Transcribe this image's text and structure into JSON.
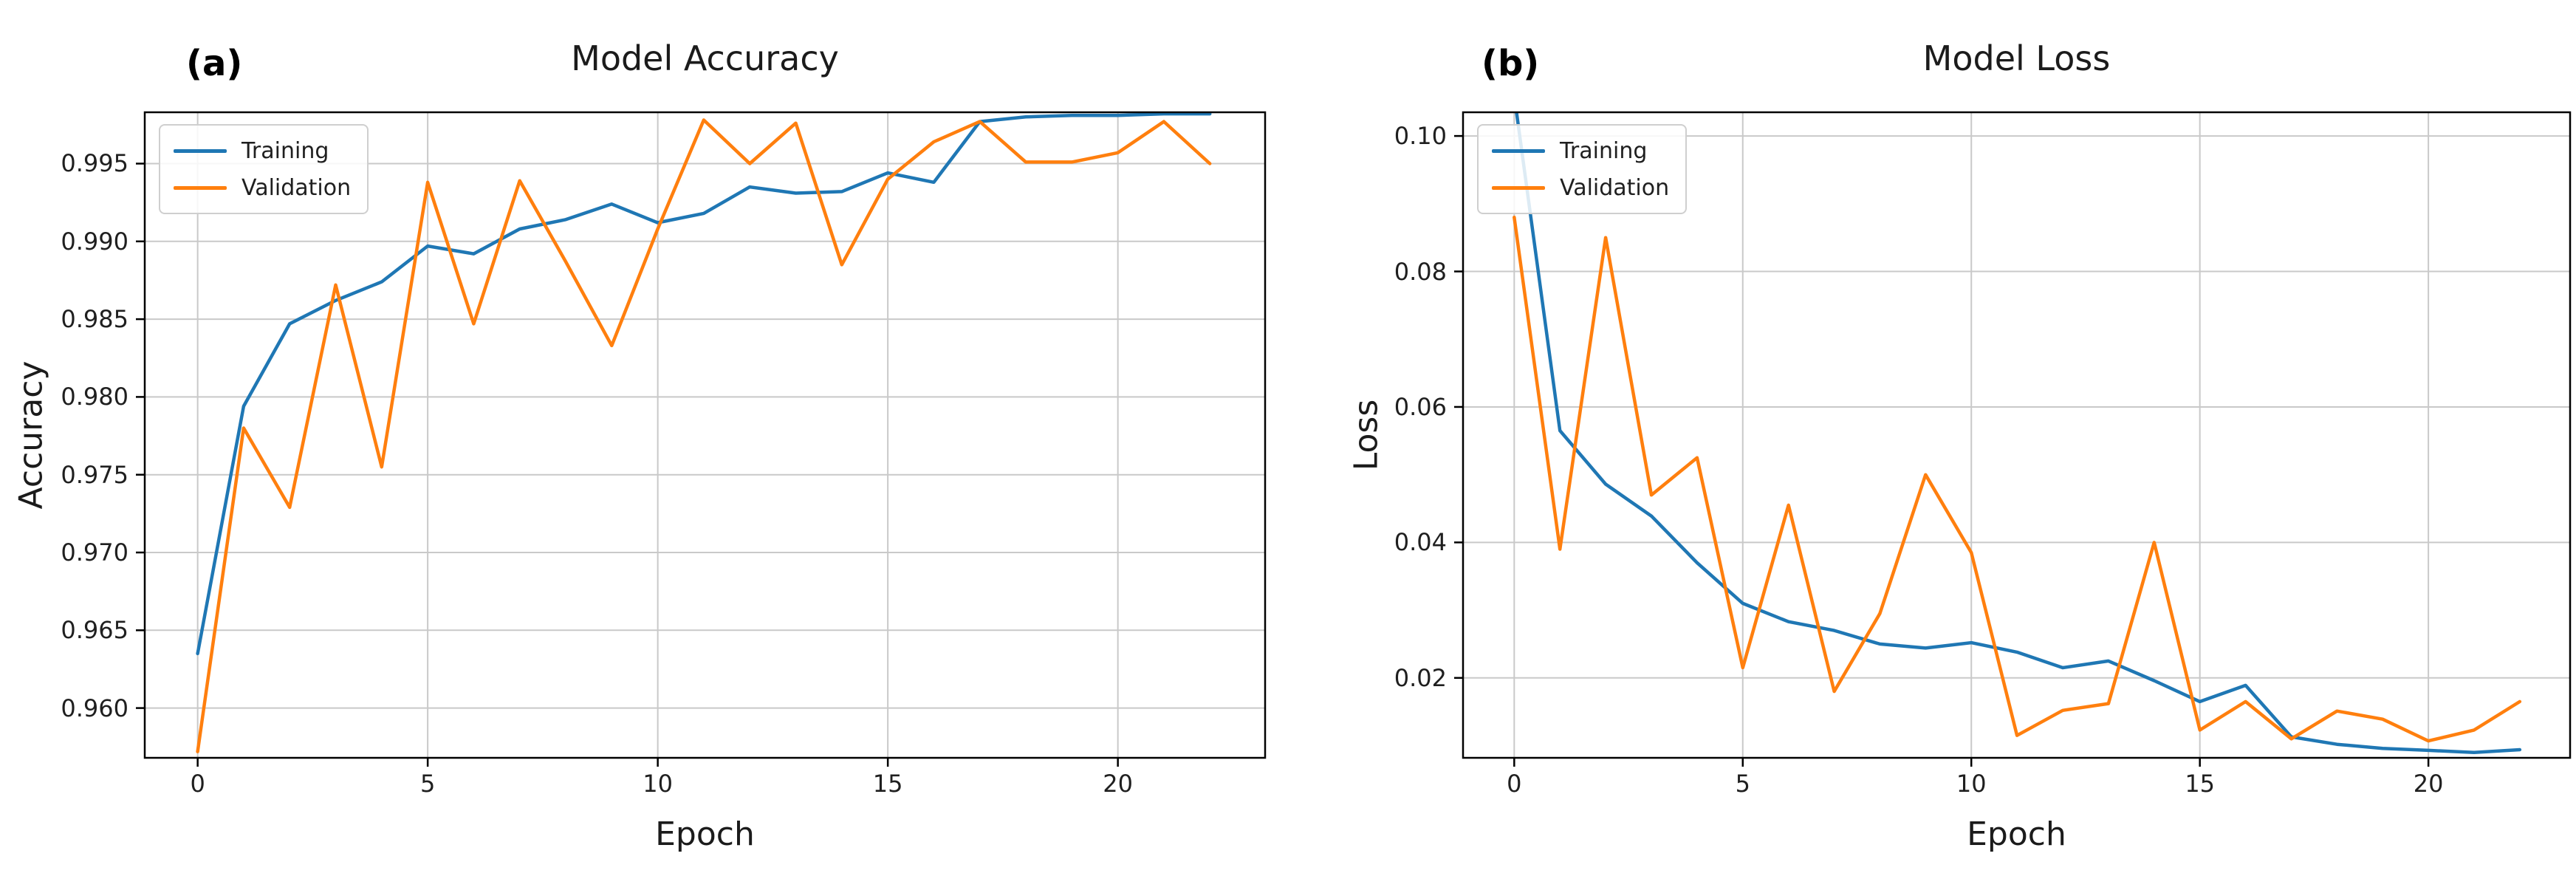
{
  "figure": {
    "background": "#ffffff",
    "text_color": "#1b1b1b",
    "grid_color": "#c9c9c9",
    "frame_color": "#000000",
    "training_color": "#1f77b4",
    "validation_color": "#ff7f0e"
  },
  "panels": [
    {
      "label": "(a)",
      "title": "Model Accuracy",
      "xlabel": "Epoch",
      "ylabel": "Accuracy"
    },
    {
      "label": "(b)",
      "title": "Model Loss",
      "xlabel": "Epoch",
      "ylabel": "Loss"
    }
  ],
  "chart_data": [
    {
      "type": "line",
      "title": "Model Accuracy",
      "xlabel": "Epoch",
      "ylabel": "Accuracy",
      "x": [
        0,
        1,
        2,
        3,
        4,
        5,
        6,
        7,
        8,
        9,
        10,
        11,
        12,
        13,
        14,
        15,
        16,
        17,
        18,
        19,
        20,
        21,
        22
      ],
      "series": [
        {
          "name": "Training",
          "color": "#1f77b4",
          "values": [
            0.9635,
            0.9794,
            0.9847,
            0.9862,
            0.9874,
            0.9897,
            0.9892,
            0.9908,
            0.9914,
            0.9924,
            0.9912,
            0.9918,
            0.9935,
            0.9931,
            0.9932,
            0.9944,
            0.9938,
            0.9977,
            0.998,
            0.9981,
            0.9981,
            0.9982,
            0.9982
          ]
        },
        {
          "name": "Validation",
          "color": "#ff7f0e",
          "values": [
            0.9572,
            0.978,
            0.9729,
            0.9872,
            0.9755,
            0.9938,
            0.9847,
            0.9939,
            0.9887,
            0.9833,
            0.9908,
            0.9978,
            0.995,
            0.9976,
            0.9885,
            0.994,
            0.9964,
            0.9977,
            0.9951,
            0.9951,
            0.9957,
            0.9977,
            0.995
          ]
        }
      ],
      "xlim": [
        -1.15,
        23.2
      ],
      "ylim": [
        0.9568,
        0.9983
      ],
      "xticks": {
        "values": [
          0,
          5,
          10,
          15,
          20
        ],
        "labels": [
          "0",
          "5",
          "10",
          "15",
          "20"
        ]
      },
      "yticks": {
        "values": [
          0.995,
          0.99,
          0.985,
          0.98,
          0.975,
          0.97,
          0.965,
          0.96
        ],
        "labels": [
          "0.995",
          "0.990",
          "0.985",
          "0.980",
          "0.975",
          "0.970",
          "0.965",
          "0.960"
        ]
      },
      "grid": true,
      "legend_position": "upper left"
    },
    {
      "type": "line",
      "title": "Model Loss",
      "xlabel": "Epoch",
      "ylabel": "Loss",
      "x": [
        0,
        1,
        2,
        3,
        4,
        5,
        6,
        7,
        8,
        9,
        10,
        11,
        12,
        13,
        14,
        15,
        16,
        17,
        18,
        19,
        20,
        21,
        22
      ],
      "series": [
        {
          "name": "Training",
          "color": "#1f77b4",
          "values": [
            0.106,
            0.0565,
            0.0486,
            0.0439,
            0.037,
            0.031,
            0.0283,
            0.027,
            0.025,
            0.0244,
            0.0252,
            0.0238,
            0.0215,
            0.0225,
            0.0196,
            0.0165,
            0.0189,
            0.0113,
            0.0102,
            0.0096,
            0.0093,
            0.009,
            0.0094
          ]
        },
        {
          "name": "Validation",
          "color": "#ff7f0e",
          "values": [
            0.088,
            0.039,
            0.085,
            0.047,
            0.0525,
            0.0215,
            0.0455,
            0.018,
            0.0295,
            0.05,
            0.0385,
            0.0115,
            0.0152,
            0.0162,
            0.04,
            0.0123,
            0.0165,
            0.011,
            0.0151,
            0.0139,
            0.0107,
            0.0123,
            0.0165
          ]
        }
      ],
      "xlim": [
        -1.12,
        23.1
      ],
      "ylim": [
        0.0082,
        0.1035
      ],
      "xticks": {
        "values": [
          0,
          5,
          10,
          15,
          20
        ],
        "labels": [
          "0",
          "5",
          "10",
          "15",
          "20"
        ]
      },
      "yticks": {
        "values": [
          0.1,
          0.08,
          0.06,
          0.04,
          0.02
        ],
        "labels": [
          "0.10",
          "0.08",
          "0.06",
          "0.04",
          "0.02"
        ]
      },
      "grid": true,
      "legend_position": "upper left"
    }
  ]
}
